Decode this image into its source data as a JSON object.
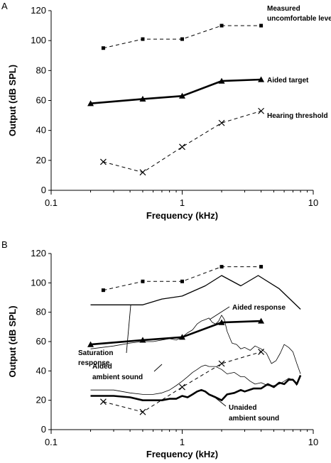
{
  "chart_data": [
    {
      "panel": "A",
      "type": "line",
      "xscale": "log",
      "xlabel": "Frequency (kHz)",
      "ylabel": "Output (dB SPL)",
      "xlim": [
        0.1,
        10
      ],
      "ylim": [
        0,
        120
      ],
      "xticks": [
        "0.1",
        "1",
        "10"
      ],
      "yticks": [
        "0",
        "20",
        "40",
        "60",
        "80",
        "100",
        "120"
      ],
      "grid": false,
      "series": [
        {
          "name": "Measured uncomfortable levels",
          "style": "dashed",
          "marker": "square",
          "x": [
            0.25,
            0.5,
            1,
            2,
            4
          ],
          "y": [
            95,
            101,
            101,
            110,
            110
          ]
        },
        {
          "name": "Aided target",
          "style": "solid-thick",
          "marker": "triangle",
          "x": [
            0.2,
            0.5,
            1,
            2,
            4
          ],
          "y": [
            58,
            61,
            63,
            73,
            74
          ]
        },
        {
          "name": "Hearing threshold",
          "style": "dashed",
          "marker": "x",
          "x": [
            0.25,
            0.5,
            1,
            2,
            4
          ],
          "y": [
            19,
            12,
            29,
            45,
            53
          ]
        }
      ],
      "annotations": [
        {
          "lines": [
            "Measured",
            "uncomfortable levels"
          ]
        },
        {
          "lines": [
            "Aided target"
          ]
        },
        {
          "lines": [
            "Hearing threshold"
          ]
        }
      ]
    },
    {
      "panel": "B",
      "type": "line",
      "xscale": "log",
      "xlabel": "Frequency (kHz)",
      "ylabel": "Output (dB SPL)",
      "xlim": [
        0.1,
        10
      ],
      "ylim": [
        0,
        120
      ],
      "xticks": [
        "0.1",
        "1",
        "10"
      ],
      "yticks": [
        "0",
        "20",
        "40",
        "60",
        "80",
        "100",
        "120"
      ],
      "grid": false,
      "series": [
        {
          "name": "Measured uncomfortable levels",
          "style": "dashed",
          "marker": "square",
          "x": [
            0.25,
            0.5,
            1,
            2,
            4
          ],
          "y": [
            95,
            101,
            101,
            111,
            111
          ]
        },
        {
          "name": "Saturation response",
          "style": "solid",
          "marker": "none",
          "x": [
            0.2,
            0.5,
            0.7,
            1,
            1.5,
            2,
            2.8,
            3.8,
            5.5,
            8
          ],
          "y": [
            85,
            85,
            89,
            91,
            98,
            105,
            98,
            105,
            96,
            82
          ]
        },
        {
          "name": "Aided response",
          "style": "thin",
          "marker": "none",
          "x": [
            0.2,
            0.3,
            0.4,
            0.5,
            0.6,
            0.7,
            0.8,
            0.9,
            1,
            1.1,
            1.2,
            1.3,
            1.4,
            1.5,
            1.6,
            1.7,
            1.8,
            1.9,
            2.0,
            2.1,
            2.2,
            2.4,
            2.6,
            2.8,
            3.0,
            3.3,
            3.6,
            4.0,
            4.4,
            4.8,
            5.2,
            5.6,
            6.0,
            6.5,
            7.0,
            7.5,
            8.0
          ],
          "y": [
            55,
            57,
            59,
            60,
            60,
            61,
            62,
            61,
            63,
            66,
            68,
            72,
            74,
            75,
            76,
            73,
            72,
            74,
            78,
            75,
            67,
            59,
            58,
            55,
            56,
            54,
            57,
            55,
            52,
            45,
            47,
            52,
            58,
            56,
            53,
            45,
            38
          ]
        },
        {
          "name": "Aided target",
          "style": "solid-thick",
          "marker": "triangle",
          "x": [
            0.2,
            0.5,
            1,
            2,
            4
          ],
          "y": [
            58,
            61,
            63,
            73,
            74
          ]
        },
        {
          "name": "Hearing threshold",
          "style": "dashed",
          "marker": "x",
          "x": [
            0.25,
            0.5,
            1,
            2,
            4
          ],
          "y": [
            19,
            12,
            29,
            45,
            53
          ]
        },
        {
          "name": "Aided ambient sound",
          "style": "thin",
          "marker": "none",
          "x": [
            0.2,
            0.3,
            0.4,
            0.5,
            0.6,
            0.7,
            0.8,
            0.9,
            1.0,
            1.1,
            1.2,
            1.3,
            1.4,
            1.5,
            1.6,
            1.8,
            2.0,
            2.2,
            2.5,
            2.8,
            3.0,
            3.3,
            3.6,
            4.0,
            4.5,
            5.0,
            5.5,
            6.0,
            6.5,
            7.0,
            7.5
          ],
          "y": [
            27,
            27,
            25,
            24,
            24,
            25,
            27,
            30,
            33,
            36,
            39,
            41,
            43,
            44,
            43,
            43,
            41,
            38,
            39,
            36,
            36,
            33,
            31,
            32,
            30,
            30,
            31,
            33,
            35,
            34,
            30
          ]
        },
        {
          "name": "Unaided ambient sound",
          "style": "solid-thick",
          "marker": "none",
          "x": [
            0.2,
            0.3,
            0.4,
            0.5,
            0.6,
            0.7,
            0.8,
            0.9,
            1.0,
            1.1,
            1.2,
            1.3,
            1.4,
            1.5,
            1.6,
            1.8,
            2.0,
            2.2,
            2.5,
            2.8,
            3.0,
            3.5,
            4.0,
            4.5,
            5.0,
            5.5,
            6.0,
            6.5,
            7.0,
            7.5,
            8.0
          ],
          "y": [
            23,
            23,
            22,
            20,
            20,
            20,
            21,
            21,
            23,
            22,
            24,
            26,
            27,
            26,
            24,
            22,
            20,
            24,
            25,
            27,
            26,
            28,
            28,
            31,
            29,
            32,
            31,
            34,
            34,
            31,
            37
          ]
        }
      ],
      "annotations": [
        {
          "lines": [
            "Saturation",
            "response"
          ]
        },
        {
          "lines": [
            "Aided response"
          ]
        },
        {
          "lines": [
            "Aided",
            "ambient sound"
          ]
        },
        {
          "lines": [
            "Unaided",
            "ambient sound"
          ]
        }
      ]
    }
  ],
  "labels": {
    "panel_a": "A",
    "panel_b": "B"
  }
}
